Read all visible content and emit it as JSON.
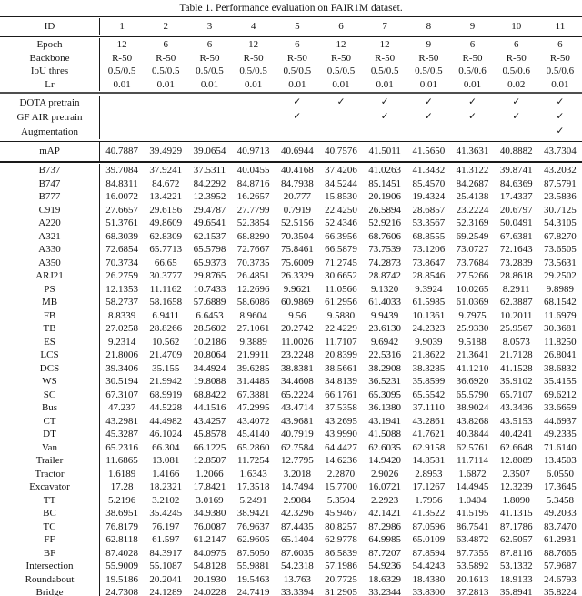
{
  "title": "Table 1.  Performance evaluation on FAIR1M dataset.",
  "table": {
    "id_row": {
      "label": "ID",
      "values": [
        "1",
        "2",
        "3",
        "4",
        "5",
        "6",
        "7",
        "8",
        "9",
        "10",
        "11"
      ]
    },
    "config_rows": [
      {
        "label": "Epoch",
        "values": [
          "12",
          "6",
          "6",
          "12",
          "6",
          "12",
          "12",
          "9",
          "6",
          "6",
          "6"
        ]
      },
      {
        "label": "Backbone",
        "values": [
          "R-50",
          "R-50",
          "R-50",
          "R-50",
          "R-50",
          "R-50",
          "R-50",
          "R-50",
          "R-50",
          "R-50",
          "R-50"
        ]
      },
      {
        "label": "IoU thres",
        "values": [
          "0.5/0.5",
          "0.5/0.5",
          "0.5/0.5",
          "0.5/0.5",
          "0.5/0.5",
          "0.5/0.5",
          "0.5/0.5",
          "0.5/0.5",
          "0.5/0.6",
          "0.5/0.6",
          "0.5/0.6"
        ]
      },
      {
        "label": "Lr",
        "values": [
          "0.01",
          "0.01",
          "0.01",
          "0.01",
          "0.01",
          "0.01",
          "0.01",
          "0.01",
          "0.01",
          "0.02",
          "0.01"
        ]
      }
    ],
    "flag_rows": [
      {
        "label": "DOTA pretrain",
        "values": [
          "",
          "",
          "",
          "",
          "✓",
          "✓",
          "✓",
          "✓",
          "✓",
          "✓",
          "✓"
        ]
      },
      {
        "label": "GF AIR pretrain",
        "values": [
          "",
          "",
          "",
          "",
          "✓",
          "",
          "✓",
          "✓",
          "✓",
          "✓",
          "✓"
        ]
      },
      {
        "label": "Augmentation",
        "values": [
          "",
          "",
          "",
          "",
          "",
          "",
          "",
          "",
          "",
          "",
          "✓"
        ]
      }
    ],
    "map_row": {
      "label": "mAP",
      "values": [
        "40.7887",
        "39.4929",
        "39.0654",
        "40.9713",
        "40.6944",
        "40.7576",
        "41.5011",
        "41.5650",
        "41.3631",
        "40.8882",
        "43.7304"
      ]
    },
    "class_rows": [
      {
        "label": "B737",
        "values": [
          "39.7084",
          "37.9241",
          "37.5311",
          "40.0455",
          "40.4168",
          "37.4206",
          "41.0263",
          "41.3432",
          "41.3122",
          "39.8741",
          "43.2032"
        ]
      },
      {
        "label": "B747",
        "values": [
          "84.8311",
          "84.672",
          "84.2292",
          "84.8716",
          "84.7938",
          "84.5244",
          "85.1451",
          "85.4570",
          "84.2687",
          "84.6369",
          "87.5791"
        ]
      },
      {
        "label": "B777",
        "values": [
          "16.0072",
          "13.4221",
          "12.3952",
          "16.2657",
          "20.777",
          "15.8530",
          "20.1906",
          "19.4324",
          "25.4138",
          "17.4337",
          "23.5836"
        ]
      },
      {
        "label": "C919",
        "values": [
          "27.6657",
          "29.6156",
          "29.4787",
          "27.7799",
          "0.7919",
          "22.4250",
          "26.5894",
          "28.6857",
          "23.2224",
          "20.6797",
          "30.7125"
        ]
      },
      {
        "label": "A220",
        "values": [
          "51.3761",
          "49.8609",
          "49.6541",
          "52.3854",
          "52.5156",
          "52.4346",
          "52.9216",
          "53.3567",
          "52.3169",
          "50.0491",
          "54.3105"
        ]
      },
      {
        "label": "A321",
        "values": [
          "68.3039",
          "62.8309",
          "62.1537",
          "68.8290",
          "70.3504",
          "66.3956",
          "68.7606",
          "68.8555",
          "69.2549",
          "67.6381",
          "67.8270"
        ]
      },
      {
        "label": "A330",
        "values": [
          "72.6854",
          "65.7713",
          "65.5798",
          "72.7667",
          "75.8461",
          "66.5879",
          "73.7539",
          "73.1206",
          "73.0727",
          "72.1643",
          "73.6505"
        ]
      },
      {
        "label": "A350",
        "values": [
          "70.3734",
          "66.65",
          "65.9373",
          "70.3735",
          "75.6009",
          "71.2745",
          "74.2873",
          "73.8647",
          "73.7684",
          "73.2839",
          "73.5631"
        ]
      },
      {
        "label": "ARJ21",
        "values": [
          "26.2759",
          "30.3777",
          "29.8765",
          "26.4851",
          "26.3329",
          "30.6652",
          "28.8742",
          "28.8546",
          "27.5266",
          "28.8618",
          "29.2502"
        ]
      },
      {
        "label": "PS",
        "values": [
          "12.1353",
          "11.1162",
          "10.7433",
          "12.2696",
          "9.9621",
          "11.0566",
          "9.1320",
          "9.3924",
          "10.0265",
          "8.2911",
          "9.8989"
        ]
      },
      {
        "label": "MB",
        "values": [
          "58.2737",
          "58.1658",
          "57.6889",
          "58.6086",
          "60.9869",
          "61.2956",
          "61.4033",
          "61.5985",
          "61.0369",
          "62.3887",
          "68.1542"
        ]
      },
      {
        "label": "FB",
        "values": [
          "8.8339",
          "6.9411",
          "6.6453",
          "8.9604",
          "9.56",
          "9.5880",
          "9.9439",
          "10.1361",
          "9.7975",
          "10.2011",
          "11.6979"
        ]
      },
      {
        "label": "TB",
        "values": [
          "27.0258",
          "28.8266",
          "28.5602",
          "27.1061",
          "20.2742",
          "22.4229",
          "23.6130",
          "24.2323",
          "25.9330",
          "25.9567",
          "30.3681"
        ]
      },
      {
        "label": "ES",
        "values": [
          "9.2314",
          "10.562",
          "10.2186",
          "9.3889",
          "11.0026",
          "11.7107",
          "9.6942",
          "9.9039",
          "9.5188",
          "8.0573",
          "11.8250"
        ]
      },
      {
        "label": "LCS",
        "values": [
          "21.8006",
          "21.4709",
          "20.8064",
          "21.9911",
          "23.2248",
          "20.8399",
          "22.5316",
          "21.8622",
          "21.3641",
          "21.7128",
          "26.8041"
        ]
      },
      {
        "label": "DCS",
        "values": [
          "39.3406",
          "35.155",
          "34.4924",
          "39.6285",
          "38.8381",
          "38.5661",
          "38.2908",
          "38.3285",
          "41.1210",
          "41.1528",
          "38.6832"
        ]
      },
      {
        "label": "WS",
        "values": [
          "30.5194",
          "21.9942",
          "19.8088",
          "31.4485",
          "34.4608",
          "34.8139",
          "36.5231",
          "35.8599",
          "36.6920",
          "35.9102",
          "35.4155"
        ]
      },
      {
        "label": "SC",
        "values": [
          "67.3107",
          "68.9919",
          "68.8422",
          "67.3881",
          "65.2224",
          "66.1761",
          "65.3095",
          "65.5542",
          "65.5790",
          "65.7107",
          "69.6212"
        ]
      },
      {
        "label": "Bus",
        "values": [
          "47.237",
          "44.5228",
          "44.1516",
          "47.2995",
          "43.4714",
          "37.5358",
          "36.1380",
          "37.1110",
          "38.9024",
          "43.3436",
          "33.6659"
        ]
      },
      {
        "label": "CT",
        "values": [
          "43.2981",
          "44.4982",
          "43.4257",
          "43.4072",
          "43.9681",
          "43.2695",
          "43.1941",
          "43.2861",
          "43.8268",
          "43.5153",
          "44.6937"
        ]
      },
      {
        "label": "DT",
        "values": [
          "45.3287",
          "46.1024",
          "45.8578",
          "45.4140",
          "40.7919",
          "43.9990",
          "41.5088",
          "41.7621",
          "40.3844",
          "40.4241",
          "49.2335"
        ]
      },
      {
        "label": "Van",
        "values": [
          "65.2316",
          "66.304",
          "66.1225",
          "65.2860",
          "62.7584",
          "64.4427",
          "62.6035",
          "62.9158",
          "62.5761",
          "62.6648",
          "71.6140"
        ]
      },
      {
        "label": "Trailer",
        "values": [
          "11.6865",
          "13.081",
          "12.8507",
          "11.7254",
          "12.7795",
          "14.6236",
          "14.9420",
          "14.8581",
          "11.7114",
          "12.8089",
          "13.4503"
        ]
      },
      {
        "label": "Tractor",
        "values": [
          "1.6189",
          "1.4166",
          "1.2066",
          "1.6343",
          "3.2018",
          "2.2870",
          "2.9026",
          "2.8953",
          "1.6872",
          "2.3507",
          "6.0550"
        ]
      },
      {
        "label": "Excavator",
        "values": [
          "17.28",
          "18.2321",
          "17.8421",
          "17.3518",
          "14.7494",
          "15.7700",
          "16.0721",
          "17.1267",
          "14.4945",
          "12.3239",
          "17.3645"
        ]
      },
      {
        "label": "TT",
        "values": [
          "5.2196",
          "3.2102",
          "3.0169",
          "5.2491",
          "2.9084",
          "5.3504",
          "2.2923",
          "1.7956",
          "1.0404",
          "1.8090",
          "5.3458"
        ]
      },
      {
        "label": "BC",
        "values": [
          "38.6951",
          "35.4245",
          "34.9380",
          "38.9421",
          "42.3296",
          "45.9467",
          "42.1421",
          "41.3522",
          "41.5195",
          "41.1315",
          "49.2033"
        ]
      },
      {
        "label": "TC",
        "values": [
          "76.8179",
          "76.197",
          "76.0087",
          "76.9637",
          "87.4435",
          "80.8257",
          "87.2986",
          "87.0596",
          "86.7541",
          "87.1786",
          "83.7470"
        ]
      },
      {
        "label": "FF",
        "values": [
          "62.8118",
          "61.597",
          "61.2147",
          "62.9605",
          "65.1404",
          "62.9778",
          "64.9985",
          "65.0109",
          "63.4872",
          "62.5057",
          "61.2931"
        ]
      },
      {
        "label": "BF",
        "values": [
          "87.4028",
          "84.3917",
          "84.0975",
          "87.5050",
          "87.6035",
          "86.5839",
          "87.7207",
          "87.8594",
          "87.7355",
          "87.8116",
          "88.7665"
        ]
      },
      {
        "label": "Intersection",
        "values": [
          "55.9009",
          "55.1087",
          "54.8128",
          "55.9881",
          "54.2318",
          "57.1986",
          "54.9236",
          "54.4243",
          "53.5892",
          "53.1332",
          "57.9687"
        ]
      },
      {
        "label": "Roundabout",
        "values": [
          "19.5186",
          "20.2041",
          "20.1930",
          "19.5463",
          "13.763",
          "20.7725",
          "18.6329",
          "18.4380",
          "20.1613",
          "18.9133",
          "24.6793"
        ]
      },
      {
        "label": "Bridge",
        "values": [
          "24.7308",
          "24.1289",
          "24.0228",
          "24.7419",
          "33.3394",
          "31.2905",
          "33.2344",
          "33.8300",
          "37.2813",
          "35.8941",
          "35.8224"
        ]
      }
    ]
  }
}
